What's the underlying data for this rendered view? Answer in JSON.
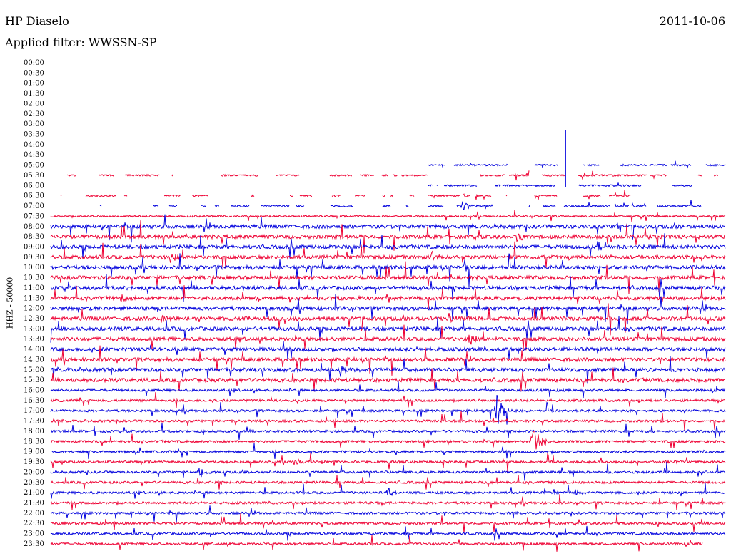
{
  "header": {
    "station": "HP Diaselo",
    "date": "2011-10-06",
    "filter": "Applied filter: WWSSN-SP"
  },
  "chart_data": {
    "type": "line",
    "title": "HP Diaselo",
    "ylabel": "HHZ - 50000",
    "times": [
      "00:00",
      "00:30",
      "01:00",
      "01:30",
      "02:00",
      "02:30",
      "03:00",
      "03:30",
      "04:00",
      "04:30",
      "05:00",
      "05:30",
      "06:00",
      "06:30",
      "07:00",
      "07:30",
      "08:00",
      "08:30",
      "09:00",
      "09:30",
      "10:00",
      "10:30",
      "11:00",
      "11:30",
      "12:00",
      "12:30",
      "13:00",
      "13:30",
      "14:00",
      "14:30",
      "15:00",
      "15:30",
      "16:00",
      "16:30",
      "17:00",
      "17:30",
      "18:00",
      "18:30",
      "19:00",
      "19:30",
      "20:00",
      "20:30",
      "21:00",
      "21:30",
      "22:00",
      "22:30",
      "23:00",
      "23:30"
    ],
    "trace_colors": [
      "#0000dd",
      "#ee0033"
    ],
    "events": [
      {
        "time": "05:30",
        "x_min": 23.0,
        "amplitude": 8
      },
      {
        "time": "07:00",
        "x_min": 18.3,
        "amplitude": 6
      },
      {
        "time": "08:00",
        "x_min": 25.2,
        "amplitude": 5
      },
      {
        "time": "08:30",
        "x_min": 20.7,
        "amplitude": 6
      },
      {
        "time": "09:00",
        "x_min": 24.3,
        "amplitude": 9
      },
      {
        "time": "09:30",
        "x_min": 5.3,
        "amplitude": 6
      },
      {
        "time": "09:30",
        "x_min": 16.9,
        "amplitude": 8
      },
      {
        "time": "10:00",
        "x_min": 18.4,
        "amplitude": 8
      },
      {
        "time": "11:30",
        "x_min": 3.1,
        "amplitude": 5
      },
      {
        "time": "11:30",
        "x_min": 9.1,
        "amplitude": 5
      },
      {
        "time": "11:30",
        "x_min": 15.0,
        "amplitude": 5
      },
      {
        "time": "12:30",
        "x_min": 4.9,
        "amplitude": 7
      },
      {
        "time": "12:30",
        "x_min": 17.7,
        "amplitude": 7
      },
      {
        "time": "13:30",
        "x_min": 18.6,
        "amplitude": 7
      },
      {
        "time": "15:00",
        "x_min": 12.9,
        "amplitude": 6
      },
      {
        "time": "17:00",
        "x_min": 19.8,
        "amplitude": 25
      },
      {
        "time": "18:30",
        "x_min": 21.4,
        "amplitude": 22
      },
      {
        "time": "19:30",
        "x_min": 10.8,
        "amplitude": 6
      },
      {
        "time": "19:30",
        "x_min": 27.3,
        "amplitude": 5
      },
      {
        "time": "20:00",
        "x_min": 6.6,
        "amplitude": 5
      },
      {
        "time": "21:00",
        "x_min": 15.0,
        "amplitude": 7
      },
      {
        "time": "21:00",
        "x_min": 23.3,
        "amplitude": 4
      },
      {
        "time": "21:00",
        "x_min": 30.4,
        "amplitude": 9
      }
    ],
    "partial_traces": {
      "05:00": "gappy",
      "05:30": "gappy",
      "06:00": "gappy",
      "06:30": "gappy",
      "07:00": "gappy",
      "23:30": "ends at 29.0 min"
    }
  }
}
